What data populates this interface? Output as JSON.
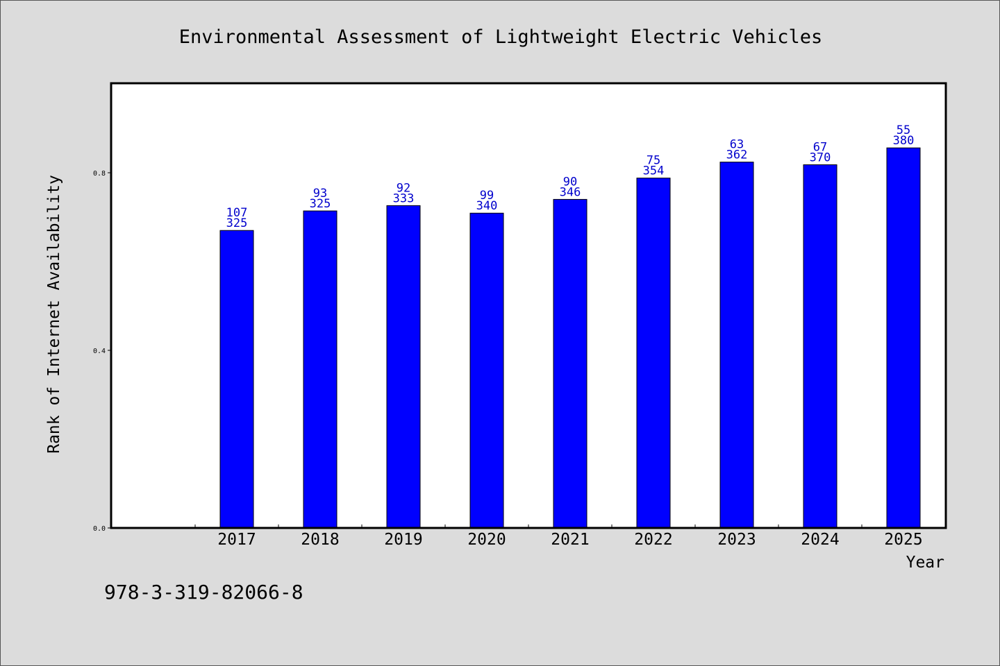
{
  "chart_data": {
    "type": "bar",
    "title": "Environmental Assessment of Lightweight Electric Vehicles",
    "xlabel": "Year",
    "ylabel": "Rank of Internet Availability",
    "categories": [
      "2017",
      "2018",
      "2019",
      "2020",
      "2021",
      "2022",
      "2023",
      "2024",
      "2025"
    ],
    "values": [
      0.67,
      0.714,
      0.726,
      0.709,
      0.74,
      0.788,
      0.824,
      0.818,
      0.856
    ],
    "labels_top": [
      "107",
      "93",
      "92",
      "99",
      "90",
      "75",
      "63",
      "67",
      "55"
    ],
    "labels_bottom": [
      "325",
      "325",
      "333",
      "340",
      "346",
      "354",
      "362",
      "370",
      "380"
    ],
    "ylim": [
      0.0,
      1.0
    ],
    "yticks": [
      0.0,
      0.4,
      0.8
    ],
    "ytick_labels": [
      "0.0",
      "0.4",
      "0.8"
    ],
    "x_slots": 10,
    "first_bar_slot": 1,
    "grid": false,
    "bar_color": "#0000ff",
    "label_color": "#0000cc"
  },
  "footnote": "978-3-319-82066-8"
}
